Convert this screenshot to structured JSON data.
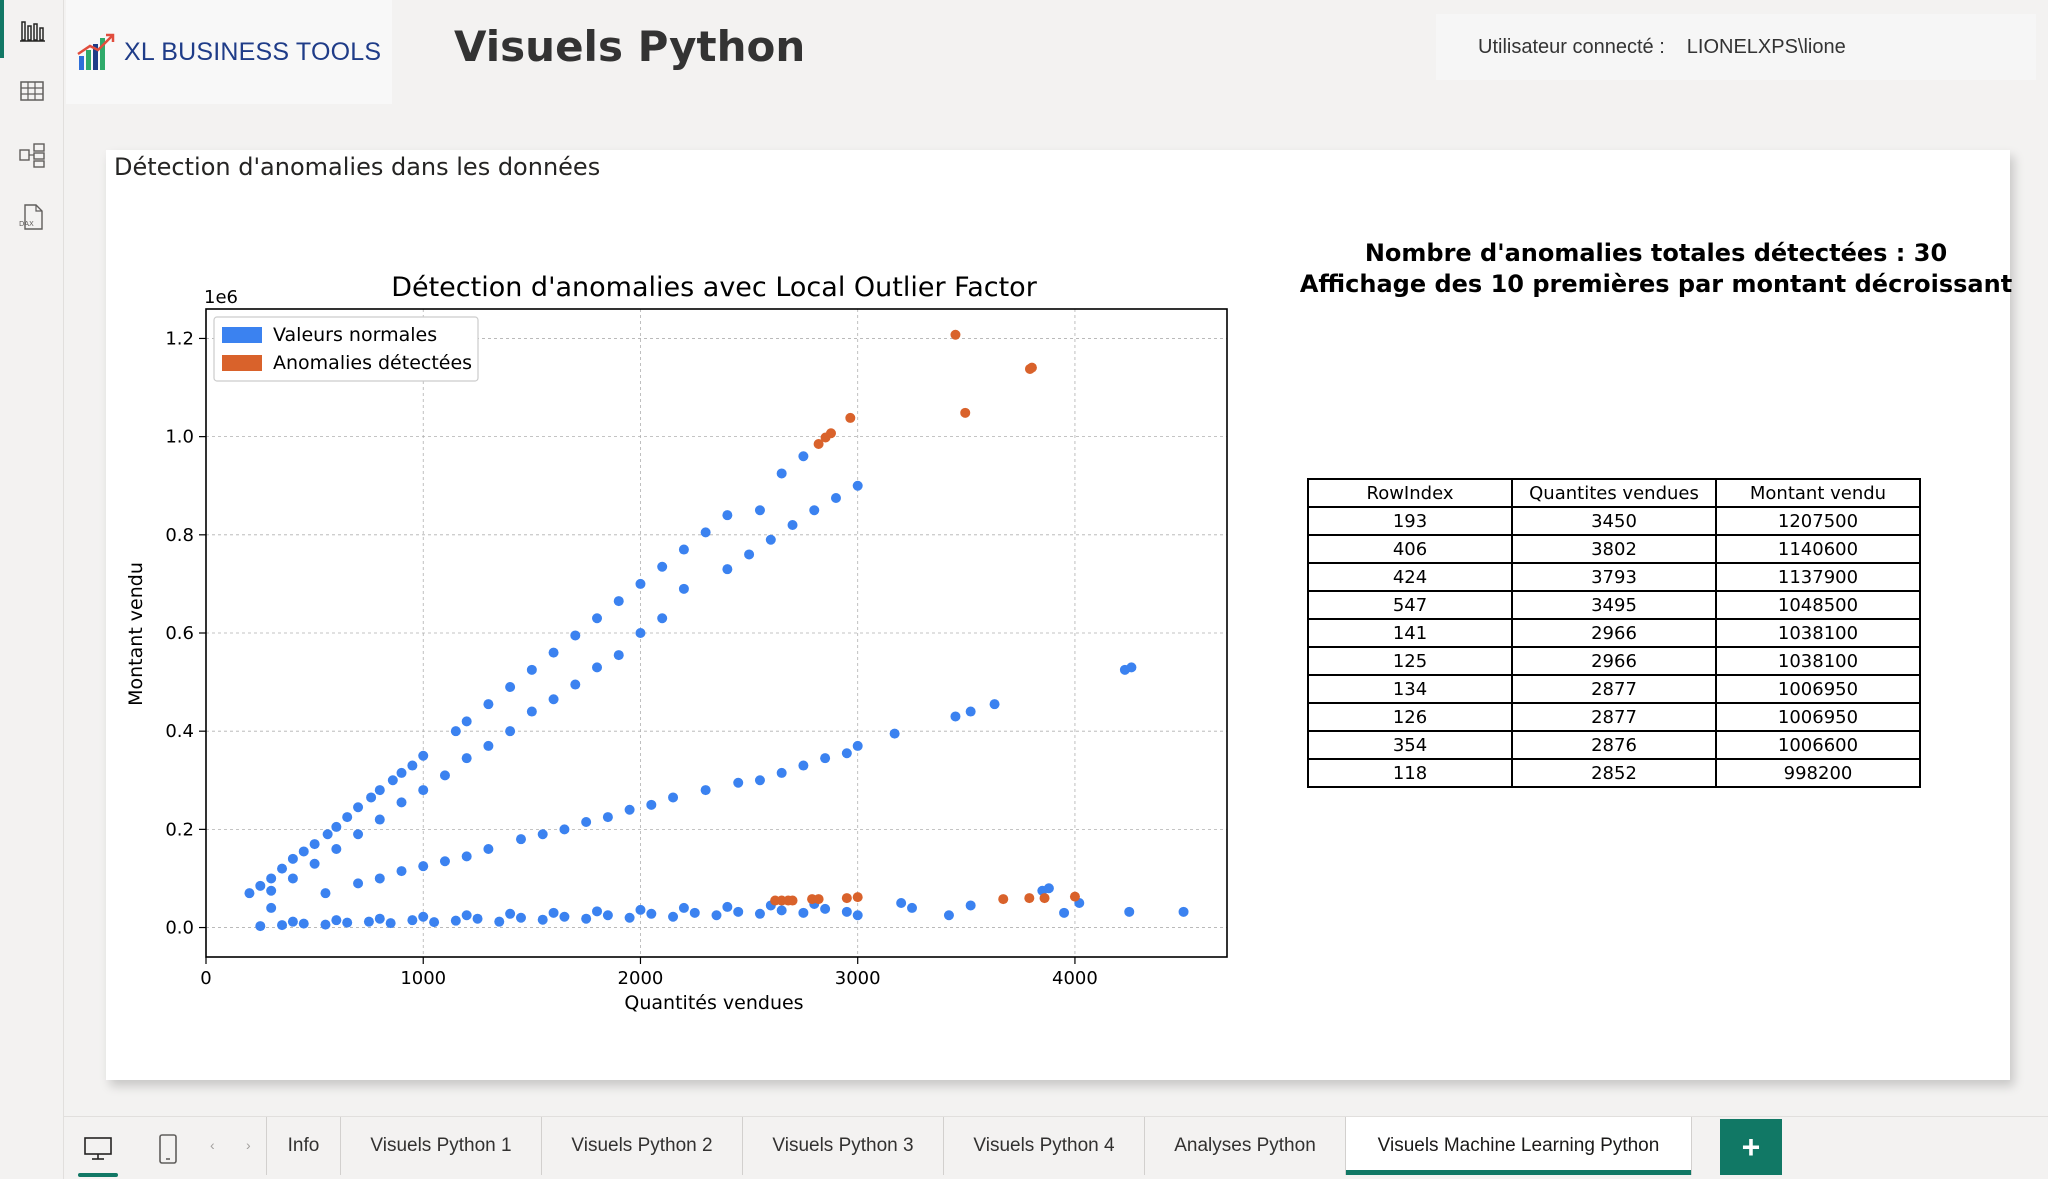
{
  "header": {
    "logo_text": "XL BUSINESS TOOLS",
    "page_title": "Visuels Python",
    "user_label": "Utilisateur connecté :",
    "user_value": "LIONELXPS\\lione"
  },
  "rail": {
    "items": [
      {
        "icon": "report-view-icon",
        "active": true
      },
      {
        "icon": "table-view-icon",
        "active": false
      },
      {
        "icon": "model-view-icon",
        "active": false
      },
      {
        "icon": "dax-query-icon",
        "active": false
      }
    ]
  },
  "card": {
    "title": "Détection d'anomalies dans les données"
  },
  "summary": {
    "line1": "Nombre d'anomalies totales détectées : 30",
    "line2": "Affichage des 10 premières par montant décroissant"
  },
  "anomaly_table": {
    "headers": [
      "RowIndex",
      "Quantites vendues",
      "Montant vendu"
    ],
    "rows": [
      [
        "193",
        "3450",
        "1207500"
      ],
      [
        "406",
        "3802",
        "1140600"
      ],
      [
        "424",
        "3793",
        "1137900"
      ],
      [
        "547",
        "3495",
        "1048500"
      ],
      [
        "141",
        "2966",
        "1038100"
      ],
      [
        "125",
        "2966",
        "1038100"
      ],
      [
        "134",
        "2877",
        "1006950"
      ],
      [
        "126",
        "2877",
        "1006950"
      ],
      [
        "354",
        "2876",
        "1006600"
      ],
      [
        "118",
        "2852",
        "998200"
      ]
    ]
  },
  "colors": {
    "normal": "#3b82f0",
    "anomaly": "#d9622b",
    "accent": "#117865"
  },
  "chart_data": {
    "type": "scatter",
    "title": "Détection d'anomalies avec Local Outlier Factor",
    "xlabel": "Quantités vendues",
    "ylabel": "Montant vendu",
    "y_offset_label": "1e6",
    "xlim": [
      0,
      4700
    ],
    "ylim": [
      -0.06,
      1.26
    ],
    "x_ticks": [
      0,
      1000,
      2000,
      3000,
      4000
    ],
    "y_ticks": [
      0.0,
      0.2,
      0.4,
      0.6,
      0.8,
      1.0,
      1.2
    ],
    "y_tick_labels": [
      "0.0",
      "0.2",
      "0.4",
      "0.6",
      "0.8",
      "1.0",
      "1.2"
    ],
    "grid": true,
    "legend_position": "top-left",
    "series": [
      {
        "name": "Valeurs normales",
        "color": "#3b82f0",
        "points": [
          [
            200,
            0.07
          ],
          [
            250,
            0.085
          ],
          [
            300,
            0.1
          ],
          [
            350,
            0.12
          ],
          [
            400,
            0.14
          ],
          [
            450,
            0.155
          ],
          [
            500,
            0.17
          ],
          [
            560,
            0.19
          ],
          [
            600,
            0.205
          ],
          [
            650,
            0.225
          ],
          [
            700,
            0.245
          ],
          [
            760,
            0.265
          ],
          [
            800,
            0.28
          ],
          [
            860,
            0.3
          ],
          [
            900,
            0.315
          ],
          [
            950,
            0.33
          ],
          [
            1000,
            0.35
          ],
          [
            1150,
            0.4
          ],
          [
            1200,
            0.42
          ],
          [
            1300,
            0.455
          ],
          [
            1400,
            0.49
          ],
          [
            1500,
            0.525
          ],
          [
            1600,
            0.56
          ],
          [
            1700,
            0.595
          ],
          [
            1800,
            0.63
          ],
          [
            1900,
            0.665
          ],
          [
            2000,
            0.7
          ],
          [
            2100,
            0.735
          ],
          [
            2200,
            0.77
          ],
          [
            2300,
            0.805
          ],
          [
            2400,
            0.84
          ],
          [
            2550,
            0.85
          ],
          [
            2650,
            0.925
          ],
          [
            2750,
            0.96
          ],
          [
            300,
            0.075
          ],
          [
            400,
            0.1
          ],
          [
            500,
            0.13
          ],
          [
            600,
            0.16
          ],
          [
            700,
            0.19
          ],
          [
            800,
            0.22
          ],
          [
            900,
            0.255
          ],
          [
            1000,
            0.28
          ],
          [
            1100,
            0.31
          ],
          [
            1200,
            0.345
          ],
          [
            1300,
            0.37
          ],
          [
            1400,
            0.4
          ],
          [
            1500,
            0.44
          ],
          [
            1600,
            0.465
          ],
          [
            1700,
            0.495
          ],
          [
            1800,
            0.53
          ],
          [
            1900,
            0.555
          ],
          [
            2000,
            0.6
          ],
          [
            2100,
            0.63
          ],
          [
            2200,
            0.69
          ],
          [
            2400,
            0.73
          ],
          [
            2500,
            0.76
          ],
          [
            2600,
            0.79
          ],
          [
            2700,
            0.82
          ],
          [
            2800,
            0.85
          ],
          [
            2900,
            0.875
          ],
          [
            3000,
            0.9
          ],
          [
            300,
            0.04
          ],
          [
            550,
            0.07
          ],
          [
            700,
            0.09
          ],
          [
            800,
            0.1
          ],
          [
            900,
            0.115
          ],
          [
            1000,
            0.125
          ],
          [
            1100,
            0.135
          ],
          [
            1200,
            0.145
          ],
          [
            1300,
            0.16
          ],
          [
            1450,
            0.18
          ],
          [
            1550,
            0.19
          ],
          [
            1650,
            0.2
          ],
          [
            1750,
            0.215
          ],
          [
            1850,
            0.225
          ],
          [
            1950,
            0.24
          ],
          [
            2050,
            0.25
          ],
          [
            2150,
            0.265
          ],
          [
            2300,
            0.28
          ],
          [
            2450,
            0.295
          ],
          [
            2550,
            0.3
          ],
          [
            2650,
            0.315
          ],
          [
            2750,
            0.33
          ],
          [
            2850,
            0.345
          ],
          [
            2950,
            0.355
          ],
          [
            3000,
            0.37
          ],
          [
            3170,
            0.395
          ],
          [
            3450,
            0.43
          ],
          [
            3520,
            0.44
          ],
          [
            3630,
            0.455
          ],
          [
            4230,
            0.525
          ],
          [
            4260,
            0.53
          ],
          [
            250,
            0.003
          ],
          [
            350,
            0.005
          ],
          [
            450,
            0.008
          ],
          [
            550,
            0.006
          ],
          [
            650,
            0.01
          ],
          [
            750,
            0.012
          ],
          [
            850,
            0.009
          ],
          [
            950,
            0.015
          ],
          [
            1050,
            0.011
          ],
          [
            1150,
            0.014
          ],
          [
            1250,
            0.018
          ],
          [
            1350,
            0.012
          ],
          [
            1450,
            0.02
          ],
          [
            1550,
            0.016
          ],
          [
            1650,
            0.022
          ],
          [
            1750,
            0.018
          ],
          [
            1850,
            0.025
          ],
          [
            1950,
            0.02
          ],
          [
            2050,
            0.028
          ],
          [
            2150,
            0.022
          ],
          [
            2250,
            0.03
          ],
          [
            2350,
            0.025
          ],
          [
            2450,
            0.032
          ],
          [
            2550,
            0.028
          ],
          [
            2650,
            0.035
          ],
          [
            2750,
            0.03
          ],
          [
            2850,
            0.038
          ],
          [
            2950,
            0.032
          ],
          [
            3000,
            0.025
          ],
          [
            400,
            0.012
          ],
          [
            600,
            0.015
          ],
          [
            800,
            0.018
          ],
          [
            1000,
            0.022
          ],
          [
            1200,
            0.025
          ],
          [
            1400,
            0.028
          ],
          [
            1600,
            0.03
          ],
          [
            1800,
            0.033
          ],
          [
            2000,
            0.036
          ],
          [
            2200,
            0.04
          ],
          [
            2400,
            0.042
          ],
          [
            2600,
            0.045
          ],
          [
            2800,
            0.048
          ],
          [
            3200,
            0.05
          ],
          [
            3250,
            0.04
          ],
          [
            3420,
            0.025
          ],
          [
            3520,
            0.045
          ],
          [
            3850,
            0.075
          ],
          [
            3880,
            0.08
          ],
          [
            3950,
            0.03
          ],
          [
            4020,
            0.05
          ],
          [
            4250,
            0.032
          ],
          [
            4500,
            0.032
          ]
        ]
      },
      {
        "name": "Anomalies détectées",
        "color": "#d9622b",
        "points": [
          [
            3450,
            1.2075
          ],
          [
            3802,
            1.1406
          ],
          [
            3793,
            1.1379
          ],
          [
            3495,
            1.0485
          ],
          [
            2966,
            1.0381
          ],
          [
            2877,
            1.00695
          ],
          [
            2852,
            0.9982
          ],
          [
            2820,
            0.985
          ],
          [
            2620,
            0.055
          ],
          [
            2650,
            0.055
          ],
          [
            2680,
            0.055
          ],
          [
            2700,
            0.055
          ],
          [
            2790,
            0.058
          ],
          [
            2820,
            0.058
          ],
          [
            2950,
            0.06
          ],
          [
            3000,
            0.062
          ],
          [
            3670,
            0.058
          ],
          [
            3790,
            0.06
          ],
          [
            3860,
            0.06
          ],
          [
            4000,
            0.063
          ]
        ]
      }
    ]
  },
  "tabs": {
    "items": [
      {
        "label": "Info",
        "active": false
      },
      {
        "label": "Visuels Python 1",
        "active": false
      },
      {
        "label": "Visuels Python 2",
        "active": false
      },
      {
        "label": "Visuels Python 3",
        "active": false
      },
      {
        "label": "Visuels Python 4",
        "active": false
      },
      {
        "label": "Analyses Python",
        "active": false
      },
      {
        "label": "Visuels Machine Learning Python",
        "active": true
      }
    ],
    "add_label": "+"
  }
}
